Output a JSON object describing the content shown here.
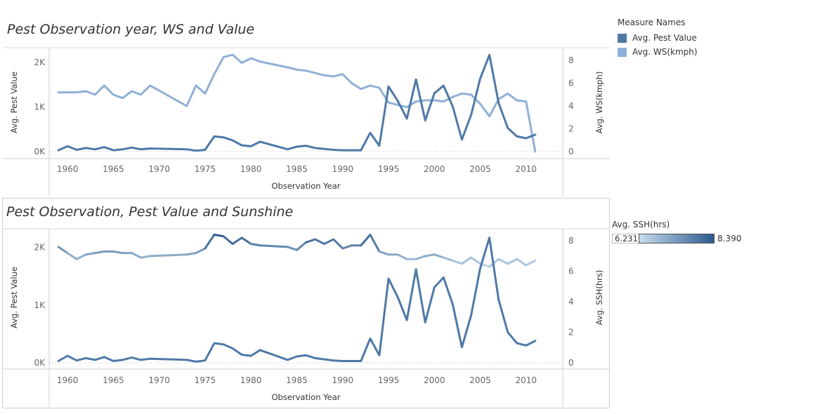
{
  "chart_data": [
    {
      "type": "line",
      "title": "Pest Observation year, WS and Value",
      "xlabel": "Observation Year",
      "ylabel": "Avg. Pest Value",
      "y2label": "Avg. WS(kmph)",
      "xlim": [
        1958,
        2014
      ],
      "ylim": [
        0,
        2300
      ],
      "y2lim": [
        0,
        9
      ],
      "x_ticks": [
        1960,
        1965,
        1970,
        1975,
        1980,
        1985,
        1990,
        1995,
        2000,
        2005,
        2010
      ],
      "y_ticks": [
        0,
        1000,
        2000
      ],
      "y_tick_labels": [
        "0K",
        "1K",
        "2K"
      ],
      "y2_ticks": [
        0,
        2,
        4,
        6,
        8
      ],
      "grid": false,
      "series": [
        {
          "name": "Avg. Pest Value",
          "axis": "left",
          "color": "#4e79a7",
          "x": [
            1959,
            1960,
            1961,
            1962,
            1963,
            1964,
            1965,
            1966,
            1967,
            1968,
            1969,
            1973,
            1974,
            1975,
            1976,
            1977,
            1978,
            1979,
            1980,
            1981,
            1984,
            1985,
            1986,
            1987,
            1988,
            1989,
            1990,
            1992,
            1993,
            1994,
            1995,
            1996,
            1997,
            1998,
            1999,
            2000,
            2001,
            2002,
            2003,
            2004,
            2005,
            2006,
            2007,
            2008,
            2009,
            2010,
            2011
          ],
          "values": [
            30,
            120,
            40,
            80,
            50,
            100,
            30,
            50,
            90,
            50,
            70,
            50,
            20,
            40,
            340,
            320,
            250,
            140,
            120,
            220,
            50,
            110,
            130,
            80,
            60,
            40,
            30,
            30,
            420,
            130,
            1460,
            1140,
            740,
            1620,
            700,
            1310,
            1480,
            1010,
            270,
            820,
            1640,
            2170,
            1100,
            530,
            340,
            300,
            380
          ]
        },
        {
          "name": "Avg. WS(kmph)",
          "axis": "right",
          "color": "#8fb0d6",
          "x": [
            1959,
            1960,
            1961,
            1962,
            1963,
            1964,
            1965,
            1966,
            1967,
            1968,
            1969,
            1973,
            1974,
            1975,
            1976,
            1977,
            1978,
            1979,
            1980,
            1981,
            1984,
            1985,
            1986,
            1987,
            1988,
            1989,
            1990,
            1991,
            1992,
            1993,
            1994,
            1995,
            1996,
            1997,
            1998,
            1999,
            2000,
            2001,
            2002,
            2003,
            2004,
            2005,
            2006,
            2007,
            2008,
            2009,
            2010,
            2011
          ],
          "values": [
            5.2,
            5.2,
            5.2,
            5.3,
            5.0,
            5.8,
            5.0,
            4.7,
            5.3,
            5.0,
            5.8,
            4.0,
            5.8,
            5.1,
            6.8,
            8.3,
            8.5,
            7.8,
            8.2,
            7.9,
            7.4,
            7.2,
            7.1,
            6.9,
            6.7,
            6.6,
            6.8,
            6.0,
            5.5,
            5.8,
            5.6,
            4.3,
            4.1,
            3.9,
            4.4,
            4.5,
            4.5,
            4.4,
            4.8,
            5.1,
            5.0,
            4.2,
            3.1,
            4.6,
            5.1,
            4.5,
            4.4,
            0.0
          ]
        }
      ]
    },
    {
      "type": "line",
      "title": "Pest Observation, Pest Value and Sunshine",
      "xlabel": "Observation Year",
      "ylabel": "Avg. Pest Value",
      "y2label": "Avg. SSH(hrs)",
      "xlim": [
        1958,
        2014
      ],
      "ylim": [
        0,
        2300
      ],
      "y2lim": [
        0,
        8.7
      ],
      "x_ticks": [
        1960,
        1965,
        1970,
        1975,
        1980,
        1985,
        1990,
        1995,
        2000,
        2005,
        2010
      ],
      "y_ticks": [
        0,
        1000,
        2000
      ],
      "y_tick_labels": [
        "0K",
        "1K",
        "2K"
      ],
      "y2_ticks": [
        0,
        2,
        4,
        6,
        8
      ],
      "grid": false,
      "series": [
        {
          "name": "Avg. Pest Value",
          "axis": "left",
          "color": "#4e79a7",
          "x": [
            1959,
            1960,
            1961,
            1962,
            1963,
            1964,
            1965,
            1966,
            1967,
            1968,
            1969,
            1973,
            1974,
            1975,
            1976,
            1977,
            1978,
            1979,
            1980,
            1981,
            1984,
            1985,
            1986,
            1987,
            1988,
            1989,
            1990,
            1992,
            1993,
            1994,
            1995,
            1996,
            1997,
            1998,
            1999,
            2000,
            2001,
            2002,
            2003,
            2004,
            2005,
            2006,
            2007,
            2008,
            2009,
            2010,
            2011
          ],
          "values": [
            30,
            120,
            40,
            80,
            50,
            100,
            30,
            50,
            90,
            50,
            70,
            50,
            20,
            40,
            340,
            320,
            250,
            140,
            120,
            220,
            50,
            110,
            130,
            80,
            60,
            40,
            30,
            30,
            420,
            130,
            1460,
            1140,
            740,
            1620,
            700,
            1310,
            1480,
            1010,
            270,
            820,
            1640,
            2170,
            1100,
            530,
            340,
            300,
            380
          ]
        },
        {
          "name": "Avg. SSH(hrs)",
          "axis": "right",
          "color_by_value": true,
          "x": [
            1959,
            1960,
            1961,
            1962,
            1963,
            1964,
            1965,
            1966,
            1967,
            1968,
            1969,
            1973,
            1974,
            1975,
            1976,
            1977,
            1978,
            1979,
            1980,
            1981,
            1984,
            1985,
            1986,
            1987,
            1988,
            1989,
            1990,
            1991,
            1992,
            1993,
            1994,
            1995,
            1996,
            1997,
            1998,
            1999,
            2000,
            2001,
            2002,
            2003,
            2004,
            2005,
            2006,
            2007,
            2008,
            2009,
            2010,
            2011
          ],
          "values": [
            7.6,
            7.2,
            6.8,
            7.1,
            7.2,
            7.3,
            7.3,
            7.2,
            7.2,
            6.9,
            7.0,
            7.1,
            7.2,
            7.5,
            8.4,
            8.3,
            7.8,
            8.2,
            7.8,
            7.7,
            7.6,
            7.4,
            7.9,
            8.1,
            7.8,
            8.1,
            7.5,
            7.7,
            7.7,
            8.4,
            7.3,
            7.1,
            7.1,
            6.8,
            6.8,
            7.0,
            7.1,
            6.9,
            6.7,
            6.5,
            6.9,
            6.5,
            6.3,
            6.8,
            6.5,
            6.8,
            6.4,
            6.7
          ]
        }
      ]
    }
  ],
  "legend": {
    "title": "Measure Names",
    "items": [
      {
        "label": "Avg. Pest Value",
        "color": "#4e79a7"
      },
      {
        "label": "Avg. WS(kmph)",
        "color": "#8fb0d6"
      }
    ]
  },
  "color_legend": {
    "title": "Avg. SSH(hrs)",
    "min_label": "6.231",
    "max_label": "8.390",
    "min": 6.231,
    "max": 8.39,
    "color_low": "#c6dbef",
    "color_high": "#2c5a8c"
  }
}
